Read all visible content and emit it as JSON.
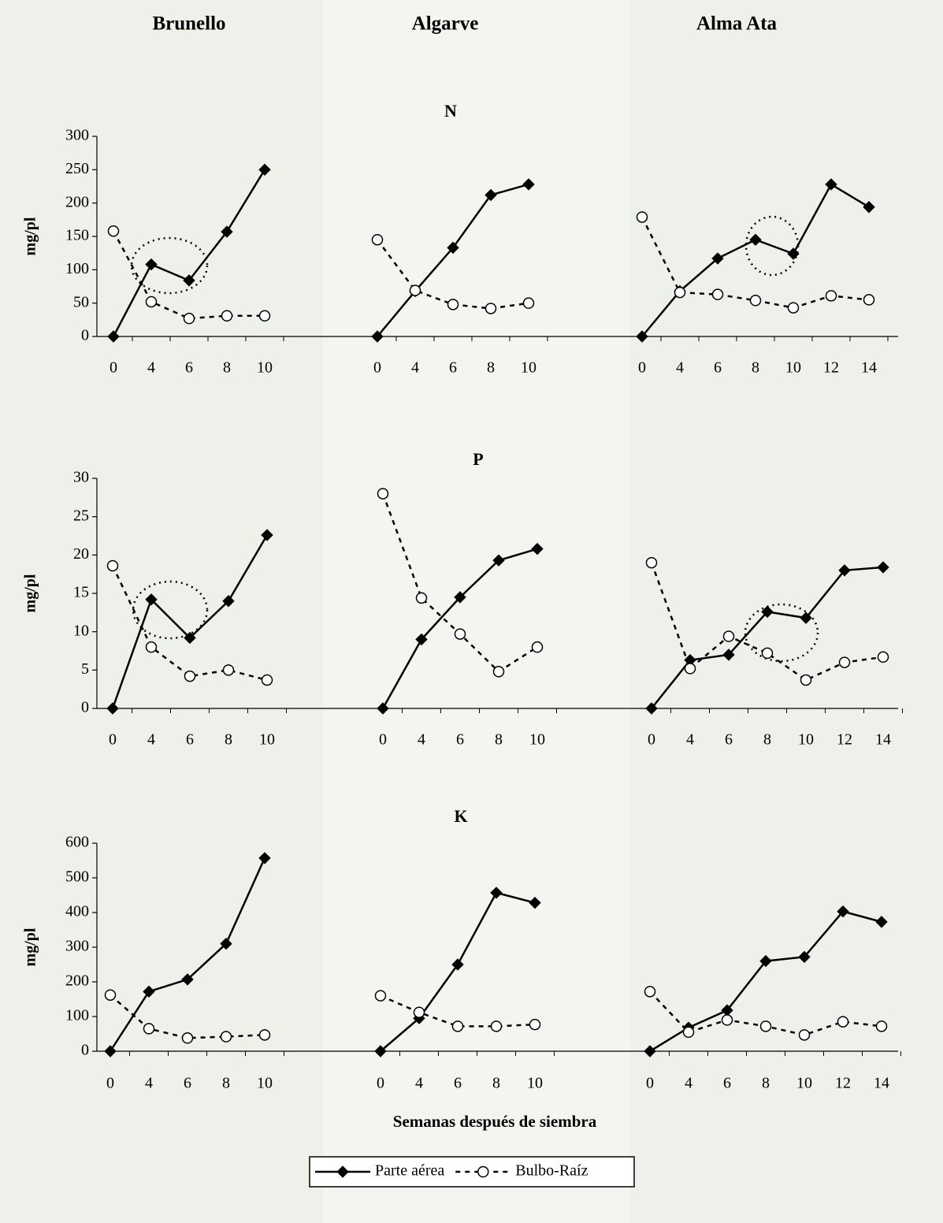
{
  "columns": [
    "Brunello",
    "Algarve",
    "Alma Ata"
  ],
  "x_label": "Semanas después de siembra",
  "legend": [
    {
      "name": "Parte aérea",
      "color": "#000000",
      "marker": "diamond",
      "dash": "solid"
    },
    {
      "name": "Bulbo-Raíz",
      "color": "#000000",
      "marker": "circle",
      "dash": "dashed"
    }
  ],
  "chart_data": [
    {
      "type": "line",
      "title": "N",
      "y_label": "mg/pl",
      "ylim": [
        0,
        300
      ],
      "yticks": [
        0,
        50,
        100,
        150,
        200,
        250,
        300
      ],
      "panels": [
        {
          "categories": [
            "0",
            "4",
            "6",
            "8",
            "10"
          ],
          "series": [
            {
              "values": [
                0,
                108,
                84,
                157,
                250
              ]
            },
            {
              "values": [
                158,
                52,
                27,
                31,
                31
              ]
            }
          ]
        },
        {
          "categories": [
            "0",
            "4",
            "6",
            "8",
            "10"
          ],
          "series": [
            {
              "values": [
                0,
                68,
                133,
                212,
                228
              ]
            },
            {
              "values": [
                145,
                69,
                48,
                42,
                50
              ]
            }
          ]
        },
        {
          "categories": [
            "0",
            "4",
            "6",
            "8",
            "10",
            "12",
            "14"
          ],
          "series": [
            {
              "values": [
                0,
                68,
                117,
                145,
                124,
                228,
                194
              ]
            },
            {
              "values": [
                179,
                66,
                63,
                54,
                43,
                61,
                55
              ]
            }
          ]
        }
      ]
    },
    {
      "type": "line",
      "title": "P",
      "y_label": "mg/pl",
      "ylim": [
        0,
        30
      ],
      "yticks": [
        0,
        5,
        10,
        15,
        20,
        25,
        30
      ],
      "panels": [
        {
          "categories": [
            "0",
            "4",
            "6",
            "8",
            "10"
          ],
          "series": [
            {
              "values": [
                0,
                14.2,
                9.2,
                14,
                22.6
              ]
            },
            {
              "values": [
                18.6,
                8,
                4.2,
                5,
                3.7
              ]
            }
          ]
        },
        {
          "categories": [
            "0",
            "4",
            "6",
            "8",
            "10"
          ],
          "series": [
            {
              "values": [
                0,
                9,
                14.5,
                19.3,
                20.8
              ]
            },
            {
              "values": [
                28,
                14.4,
                9.7,
                4.8,
                8
              ]
            }
          ]
        },
        {
          "categories": [
            "0",
            "4",
            "6",
            "8",
            "10",
            "12",
            "14"
          ],
          "series": [
            {
              "values": [
                0,
                6.3,
                7,
                12.6,
                11.8,
                18,
                18.4
              ]
            },
            {
              "values": [
                19,
                5.2,
                9.4,
                7.2,
                3.7,
                6,
                6.7
              ]
            }
          ]
        }
      ]
    },
    {
      "type": "line",
      "title": "K",
      "y_label": "mg/pl",
      "ylim": [
        0,
        600
      ],
      "yticks": [
        0,
        100,
        200,
        300,
        400,
        500,
        600
      ],
      "panels": [
        {
          "categories": [
            "0",
            "4",
            "6",
            "8",
            "10"
          ],
          "series": [
            {
              "values": [
                0,
                172,
                207,
                310,
                557
              ]
            },
            {
              "values": [
                162,
                65,
                38,
                42,
                47
              ]
            }
          ]
        },
        {
          "categories": [
            "0",
            "4",
            "6",
            "8",
            "10"
          ],
          "series": [
            {
              "values": [
                0,
                95,
                250,
                457,
                428
              ]
            },
            {
              "values": [
                160,
                112,
                72,
                72,
                77
              ]
            }
          ]
        },
        {
          "categories": [
            "0",
            "4",
            "6",
            "8",
            "10",
            "12",
            "14"
          ],
          "series": [
            {
              "values": [
                0,
                68,
                118,
                260,
                272,
                403,
                373
              ]
            },
            {
              "values": [
                172,
                55,
                90,
                72,
                47,
                85,
                72
              ]
            }
          ]
        }
      ]
    }
  ]
}
